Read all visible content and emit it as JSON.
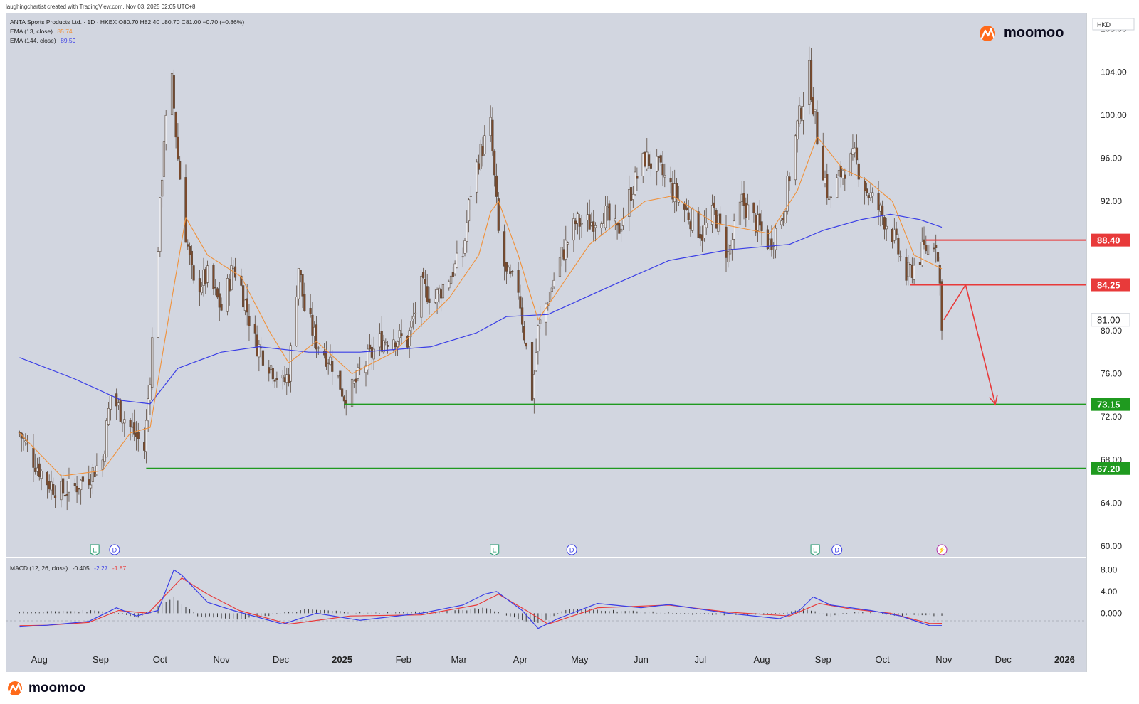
{
  "header": {
    "credit": "laughingchartist created with TradingView.com, Nov 03, 2025 02:05 UTC+8"
  },
  "chart_info": {
    "line1": "ANTA Sports Products Ltd. · 1D · HKEX  O80.70  H82.40  L80.70  C81.00  −0.70 (−0.86%)",
    "ema13_label": "EMA (13, close)",
    "ema13_value": "85.74",
    "ema144_label": "EMA (144, close)",
    "ema144_value": "89.59",
    "currency": "HKD",
    "watermark": "moomoo"
  },
  "footer": {
    "brand": "moomoo"
  },
  "colors": {
    "background": "#d2d6e0",
    "ema13": "#f0913a",
    "ema144": "#3a3ee6",
    "resistance": "#e83a3a",
    "support": "#1f9a1f",
    "candle": "#5b4a3e",
    "macd_line": "#3a3ee6",
    "signal_line": "#e83a3a"
  },
  "chart_data": [
    {
      "type": "candlestick",
      "title": "ANTA Sports Products Ltd. · 1D · HKEX",
      "ylim": [
        59,
        109.5
      ],
      "y_ticks": [
        60,
        64,
        68,
        72,
        76,
        80,
        92,
        96,
        100,
        104,
        108
      ],
      "x_ticks": [
        "Aug",
        "Sep",
        "Oct",
        "Nov",
        "Dec",
        "2025",
        "Feb",
        "Mar",
        "Apr",
        "May",
        "Jun",
        "Jul",
        "Aug",
        "Sep",
        "Oct",
        "Nov",
        "Dec",
        "2026"
      ],
      "price_path": [
        [
          "2024-07-22",
          70.5
        ],
        [
          "2024-07-29",
          68
        ],
        [
          "2024-08-05",
          66
        ],
        [
          "2024-08-12",
          65
        ],
        [
          "2024-08-19",
          65.5
        ],
        [
          "2024-08-26",
          66.5
        ],
        [
          "2024-09-02",
          68
        ],
        [
          "2024-09-06",
          74
        ],
        [
          "2024-09-16",
          71
        ],
        [
          "2024-09-23",
          69
        ],
        [
          "2024-09-26",
          76
        ],
        [
          "2024-09-30",
          88
        ],
        [
          "2024-10-03",
          98
        ],
        [
          "2024-10-07",
          103
        ],
        [
          "2024-10-10",
          96
        ],
        [
          "2024-10-14",
          89
        ],
        [
          "2024-10-18",
          84
        ],
        [
          "2024-10-25",
          85
        ],
        [
          "2024-11-01",
          82
        ],
        [
          "2024-11-07",
          86
        ],
        [
          "2024-11-11",
          84
        ],
        [
          "2024-11-18",
          79
        ],
        [
          "2024-11-25",
          77
        ],
        [
          "2024-12-02",
          75
        ],
        [
          "2024-12-05",
          76
        ],
        [
          "2024-12-10",
          86
        ],
        [
          "2024-12-13",
          82
        ],
        [
          "2024-12-19",
          79
        ],
        [
          "2024-12-27",
          77
        ],
        [
          "2025-01-02",
          74
        ],
        [
          "2025-01-06",
          74.5
        ],
        [
          "2025-01-13",
          77
        ],
        [
          "2025-01-20",
          79
        ],
        [
          "2025-01-27",
          79.5
        ],
        [
          "2025-02-03",
          79
        ],
        [
          "2025-02-10",
          84
        ],
        [
          "2025-02-17",
          83
        ],
        [
          "2025-02-24",
          85
        ],
        [
          "2025-03-03",
          87
        ],
        [
          "2025-03-07",
          93
        ],
        [
          "2025-03-11",
          96
        ],
        [
          "2025-03-17",
          99
        ],
        [
          "2025-03-21",
          89
        ],
        [
          "2025-03-25",
          85
        ],
        [
          "2025-03-31",
          84
        ],
        [
          "2025-04-07",
          74
        ],
        [
          "2025-04-10",
          80
        ],
        [
          "2025-04-15",
          83
        ],
        [
          "2025-04-22",
          87
        ],
        [
          "2025-04-29",
          90
        ],
        [
          "2025-05-06",
          90
        ],
        [
          "2025-05-13",
          91
        ],
        [
          "2025-05-20",
          89
        ],
        [
          "2025-05-27",
          93
        ],
        [
          "2025-06-03",
          96
        ],
        [
          "2025-06-10",
          95
        ],
        [
          "2025-06-17",
          93
        ],
        [
          "2025-06-24",
          91
        ],
        [
          "2025-07-02",
          89
        ],
        [
          "2025-07-08",
          91
        ],
        [
          "2025-07-15",
          87
        ],
        [
          "2025-07-22",
          92
        ],
        [
          "2025-07-29",
          90
        ],
        [
          "2025-08-05",
          88
        ],
        [
          "2025-08-12",
          91
        ],
        [
          "2025-08-19",
          99
        ],
        [
          "2025-08-25",
          104
        ],
        [
          "2025-08-29",
          98
        ],
        [
          "2025-09-04",
          92
        ],
        [
          "2025-09-11",
          95
        ],
        [
          "2025-09-17",
          96
        ],
        [
          "2025-09-23",
          93
        ],
        [
          "2025-09-30",
          91
        ],
        [
          "2025-10-06",
          89
        ],
        [
          "2025-10-13",
          85
        ],
        [
          "2025-10-17",
          86
        ],
        [
          "2025-10-22",
          87.5
        ],
        [
          "2025-10-28",
          88.5
        ],
        [
          "2025-10-30",
          84.2
        ],
        [
          "2025-10-31",
          81.0
        ]
      ],
      "series": [
        {
          "name": "EMA (13, close)",
          "last": 85.74,
          "points": [
            [
              "2024-07-22",
              70.5
            ],
            [
              "2024-08-12",
              66.5
            ],
            [
              "2024-09-02",
              67
            ],
            [
              "2024-09-16",
              70.5
            ],
            [
              "2024-09-26",
              71
            ],
            [
              "2024-10-07",
              83
            ],
            [
              "2024-10-14",
              90.5
            ],
            [
              "2024-10-25",
              87
            ],
            [
              "2024-11-11",
              85
            ],
            [
              "2024-11-25",
              80
            ],
            [
              "2024-12-05",
              77
            ],
            [
              "2024-12-19",
              79
            ],
            [
              "2025-01-06",
              76
            ],
            [
              "2025-01-27",
              78
            ],
            [
              "2025-02-24",
              83
            ],
            [
              "2025-03-11",
              87
            ],
            [
              "2025-03-17",
              91
            ],
            [
              "2025-03-21",
              92
            ],
            [
              "2025-03-31",
              87
            ],
            [
              "2025-04-10",
              81
            ],
            [
              "2025-05-06",
              88
            ],
            [
              "2025-06-03",
              92
            ],
            [
              "2025-06-17",
              92.5
            ],
            [
              "2025-07-08",
              90
            ],
            [
              "2025-08-05",
              89
            ],
            [
              "2025-08-19",
              93
            ],
            [
              "2025-08-29",
              98
            ],
            [
              "2025-09-11",
              95
            ],
            [
              "2025-09-23",
              94
            ],
            [
              "2025-10-06",
              92
            ],
            [
              "2025-10-17",
              87
            ],
            [
              "2025-10-31",
              85.74
            ]
          ]
        },
        {
          "name": "EMA (144, close)",
          "last": 89.59,
          "points": [
            [
              "2024-07-22",
              77.5
            ],
            [
              "2024-08-19",
              75.5
            ],
            [
              "2024-09-12",
              73.5
            ],
            [
              "2024-09-26",
              73.2
            ],
            [
              "2024-10-10",
              76.5
            ],
            [
              "2024-11-01",
              78
            ],
            [
              "2024-11-20",
              78.5
            ],
            [
              "2024-12-15",
              78
            ],
            [
              "2025-01-10",
              78
            ],
            [
              "2025-02-15",
              78.5
            ],
            [
              "2025-03-10",
              79.8
            ],
            [
              "2025-03-25",
              81.3
            ],
            [
              "2025-04-15",
              81.5
            ],
            [
              "2025-05-15",
              84
            ],
            [
              "2025-06-15",
              86.5
            ],
            [
              "2025-07-15",
              87.5
            ],
            [
              "2025-08-15",
              88
            ],
            [
              "2025-09-01",
              89.3
            ],
            [
              "2025-09-20",
              90.3
            ],
            [
              "2025-10-05",
              90.8
            ],
            [
              "2025-10-20",
              90.3
            ],
            [
              "2025-10-31",
              89.59
            ]
          ]
        }
      ],
      "levels": [
        {
          "label": "88.40",
          "value": 88.4,
          "color": "#e83a3a",
          "from": "2025-10-23",
          "to": "2025-12-31"
        },
        {
          "label": "84.25",
          "value": 84.25,
          "color": "#e83a3a",
          "from": "2025-10-15",
          "to": "2025-12-31"
        },
        {
          "label": "73.15",
          "value": 73.15,
          "color": "#1f9a1f",
          "from": "2025-01-02",
          "to": "2025-12-31"
        },
        {
          "label": "67.20",
          "value": 67.2,
          "color": "#1f9a1f",
          "from": "2024-09-24",
          "to": "2025-12-31"
        }
      ],
      "last_price": {
        "label": "81.00",
        "value": 81.0
      },
      "projection": [
        [
          "2025-11-01",
          81.0
        ],
        [
          "2025-11-12",
          84.25
        ],
        [
          "2025-11-27",
          73.15
        ]
      ],
      "events": [
        {
          "label": "E",
          "date": "2024-08-29"
        },
        {
          "label": "D",
          "date": "2024-09-08"
        },
        {
          "label": "E",
          "date": "2025-03-19"
        },
        {
          "label": "D",
          "date": "2025-04-27"
        },
        {
          "label": "E",
          "date": "2025-08-28"
        },
        {
          "label": "D",
          "date": "2025-09-08"
        },
        {
          "label": "⚡",
          "date": "2025-10-31"
        }
      ]
    },
    {
      "type": "line",
      "title": "MACD (12, 26, close)",
      "values_label": [
        "-0.405",
        "-2.27",
        "-1.87"
      ],
      "ylim": [
        -6.5,
        10
      ],
      "y_ticks": [
        8,
        4,
        0
      ],
      "y_tick_labels": [
        "8.00",
        "4.00",
        "0.000"
      ],
      "series": [
        {
          "name": "MACD",
          "points": [
            [
              "2024-07-22",
              -2.5
            ],
            [
              "2024-08-05",
              -2.2
            ],
            [
              "2024-08-26",
              -1.5
            ],
            [
              "2024-09-09",
              1
            ],
            [
              "2024-09-19",
              -0.5
            ],
            [
              "2024-09-30",
              0.5
            ],
            [
              "2024-10-08",
              8
            ],
            [
              "2024-10-12",
              7
            ],
            [
              "2024-10-25",
              2
            ],
            [
              "2024-11-07",
              0.5
            ],
            [
              "2024-12-02",
              -2
            ],
            [
              "2024-12-19",
              0
            ],
            [
              "2025-01-10",
              -1.3
            ],
            [
              "2025-02-10",
              0
            ],
            [
              "2025-03-03",
              1.5
            ],
            [
              "2025-03-14",
              3.5
            ],
            [
              "2025-03-20",
              4
            ],
            [
              "2025-04-02",
              0.5
            ],
            [
              "2025-04-10",
              -2.8
            ],
            [
              "2025-04-20",
              -1
            ],
            [
              "2025-05-10",
              1.8
            ],
            [
              "2025-06-01",
              1
            ],
            [
              "2025-06-15",
              1.6
            ],
            [
              "2025-07-15",
              0
            ],
            [
              "2025-08-10",
              -1
            ],
            [
              "2025-08-20",
              0.5
            ],
            [
              "2025-08-27",
              3
            ],
            [
              "2025-09-05",
              1.5
            ],
            [
              "2025-09-25",
              0.5
            ],
            [
              "2025-10-10",
              -0.5
            ],
            [
              "2025-10-25",
              -2.3
            ],
            [
              "2025-10-31",
              -2.27
            ]
          ]
        },
        {
          "name": "Signal",
          "points": [
            [
              "2024-07-22",
              -2.3
            ],
            [
              "2024-08-05",
              -2.2
            ],
            [
              "2024-08-26",
              -1.7
            ],
            [
              "2024-09-10",
              0.5
            ],
            [
              "2024-09-25",
              0
            ],
            [
              "2024-10-12",
              6.5
            ],
            [
              "2024-10-25",
              3.5
            ],
            [
              "2024-11-10",
              0.5
            ],
            [
              "2024-12-05",
              -2
            ],
            [
              "2025-01-05",
              -0.5
            ],
            [
              "2025-02-10",
              -0.3
            ],
            [
              "2025-03-10",
              1.5
            ],
            [
              "2025-03-21",
              3.5
            ],
            [
              "2025-04-05",
              0.3
            ],
            [
              "2025-04-15",
              -2
            ],
            [
              "2025-05-10",
              1
            ],
            [
              "2025-06-15",
              1.5
            ],
            [
              "2025-07-15",
              0.2
            ],
            [
              "2025-08-15",
              -0.5
            ],
            [
              "2025-08-30",
              1.8
            ],
            [
              "2025-09-15",
              0.8
            ],
            [
              "2025-10-05",
              0
            ],
            [
              "2025-10-25",
              -1.9
            ],
            [
              "2025-10-31",
              -1.87
            ]
          ]
        },
        {
          "name": "Histogram",
          "points": [
            [
              "2024-07-22",
              0.2
            ],
            [
              "2024-09-01",
              0.5
            ],
            [
              "2024-09-20",
              -0.7
            ],
            [
              "2024-10-03",
              2
            ],
            [
              "2024-10-08",
              3
            ],
            [
              "2024-10-20",
              -0.5
            ],
            [
              "2024-11-10",
              -1.2
            ],
            [
              "2024-12-05",
              0.2
            ],
            [
              "2024-12-15",
              0.7
            ],
            [
              "2025-01-15",
              0
            ],
            [
              "2025-03-01",
              0.5
            ],
            [
              "2025-03-15",
              1
            ],
            [
              "2025-04-01",
              -1.2
            ],
            [
              "2025-04-10",
              -1.8
            ],
            [
              "2025-04-25",
              0.8
            ],
            [
              "2025-06-01",
              0.3
            ],
            [
              "2025-07-01",
              -0.3
            ],
            [
              "2025-08-10",
              -0.2
            ],
            [
              "2025-08-22",
              1
            ],
            [
              "2025-09-05",
              -0.6
            ],
            [
              "2025-09-20",
              0.2
            ],
            [
              "2025-10-10",
              -0.4
            ],
            [
              "2025-10-31",
              -0.405
            ]
          ]
        }
      ]
    }
  ]
}
